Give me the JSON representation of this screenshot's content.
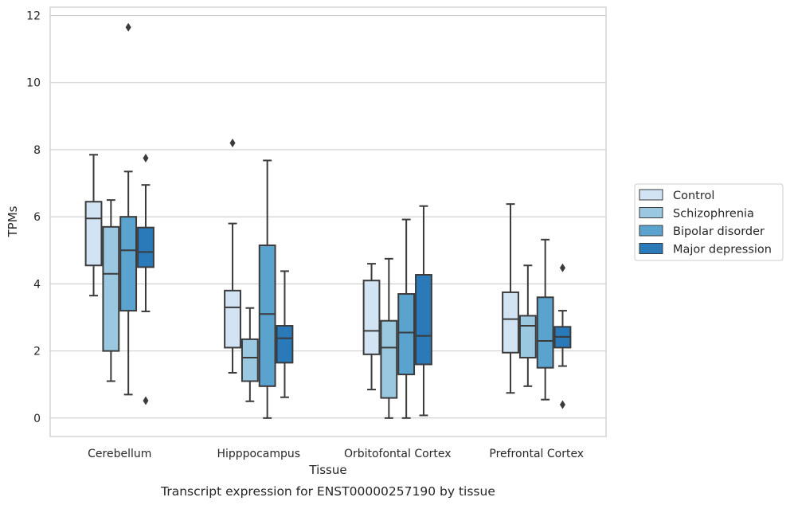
{
  "chart_data": {
    "type": "box",
    "caption": "Transcript expression for ENST00000257190 by tissue",
    "xlabel": "Tissue",
    "ylabel": "TPMs",
    "ylim": [
      -0.55,
      12.25
    ],
    "yticks": [
      0,
      2,
      4,
      6,
      8,
      10,
      12
    ],
    "grid": true,
    "legend_position": "right",
    "categories": [
      "Cerebellum",
      "Hipppocampus",
      "Orbitofontal Cortex",
      "Prefrontal Cortex"
    ],
    "series": [
      {
        "name": "Control",
        "color": "#d2e3f3",
        "boxes": [
          {
            "whislo": 3.65,
            "q1": 4.55,
            "med": 5.95,
            "q3": 6.45,
            "whishi": 7.85,
            "fliers": []
          },
          {
            "whislo": 1.35,
            "q1": 2.1,
            "med": 3.3,
            "q3": 3.8,
            "whishi": 5.8,
            "fliers": [
              8.2
            ]
          },
          {
            "whislo": 0.85,
            "q1": 1.9,
            "med": 2.6,
            "q3": 4.1,
            "whishi": 4.6,
            "fliers": []
          },
          {
            "whislo": 0.75,
            "q1": 1.95,
            "med": 2.95,
            "q3": 3.75,
            "whishi": 6.38,
            "fliers": []
          }
        ]
      },
      {
        "name": "Schizophrenia",
        "color": "#9ac8e0",
        "boxes": [
          {
            "whislo": 1.1,
            "q1": 2.0,
            "med": 4.3,
            "q3": 5.7,
            "whishi": 6.5,
            "fliers": []
          },
          {
            "whislo": 0.5,
            "q1": 1.1,
            "med": 1.8,
            "q3": 2.35,
            "whishi": 3.28,
            "fliers": []
          },
          {
            "whislo": 0.0,
            "q1": 0.6,
            "med": 2.1,
            "q3": 2.9,
            "whishi": 4.75,
            "fliers": []
          },
          {
            "whislo": 0.95,
            "q1": 1.8,
            "med": 2.75,
            "q3": 3.05,
            "whishi": 4.55,
            "fliers": []
          }
        ]
      },
      {
        "name": "Bipolar disorder",
        "color": "#5ba3cf",
        "boxes": [
          {
            "whislo": 0.7,
            "q1": 3.2,
            "med": 5.0,
            "q3": 6.0,
            "whishi": 7.35,
            "fliers": [
              11.65
            ]
          },
          {
            "whislo": 0.0,
            "q1": 0.95,
            "med": 3.1,
            "q3": 5.15,
            "whishi": 7.68,
            "fliers": []
          },
          {
            "whislo": 0.0,
            "q1": 1.3,
            "med": 2.55,
            "q3": 3.7,
            "whishi": 5.92,
            "fliers": []
          },
          {
            "whislo": 0.55,
            "q1": 1.5,
            "med": 2.3,
            "q3": 3.6,
            "whishi": 5.32,
            "fliers": []
          }
        ]
      },
      {
        "name": "Major depression",
        "color": "#2a7ab9",
        "boxes": [
          {
            "whislo": 3.18,
            "q1": 4.5,
            "med": 4.95,
            "q3": 5.68,
            "whishi": 6.95,
            "fliers": [
              7.75,
              0.52
            ]
          },
          {
            "whislo": 0.62,
            "q1": 1.65,
            "med": 2.38,
            "q3": 2.75,
            "whishi": 4.38,
            "fliers": []
          },
          {
            "whislo": 0.08,
            "q1": 1.6,
            "med": 2.45,
            "q3": 4.27,
            "whishi": 6.32,
            "fliers": []
          },
          {
            "whislo": 1.55,
            "q1": 2.1,
            "med": 2.42,
            "q3": 2.72,
            "whishi": 3.2,
            "fliers": [
              4.48,
              0.4
            ]
          }
        ]
      }
    ]
  }
}
